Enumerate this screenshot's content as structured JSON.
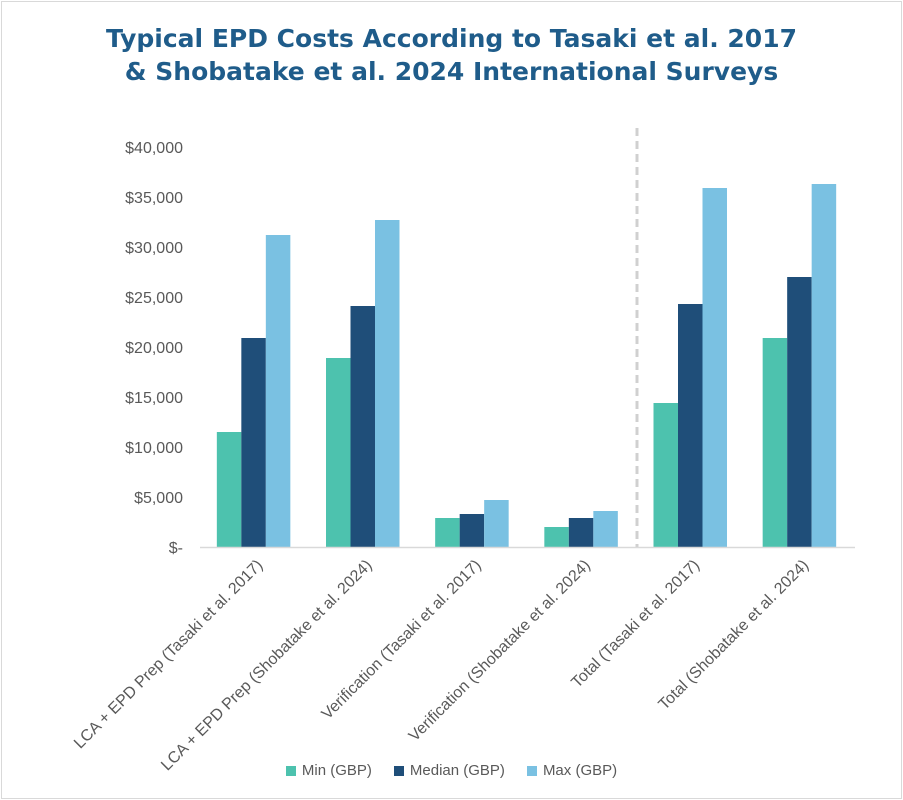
{
  "chart_data": {
    "type": "bar",
    "title": "Typical EPD Costs According to Tasaki et al. 2017 & Shobatake et al. 2024 International Surveys",
    "title_lines": [
      "Typical EPD Costs According to Tasaki et al. 2017",
      "& Shobatake et al. 2024 International Surveys"
    ],
    "xlabel": "",
    "ylabel": "",
    "ylim": [
      0,
      40000
    ],
    "yticks": [
      0,
      5000,
      10000,
      15000,
      20000,
      25000,
      30000,
      35000,
      40000
    ],
    "ytick_labels": [
      "$-",
      "$5,000",
      "$10,000",
      "$15,000",
      "$20,000",
      "$25,000",
      "$30,000",
      "$35,000",
      "$40,000"
    ],
    "grid": false,
    "legend_position": "bottom",
    "categories": [
      "LCA + EPD Prep (Tasaki et al. 2017)",
      "LCA + EPD Prep (Shobatake et al. 2024)",
      "Verification (Tasaki et al. 2017)",
      "Verification (Shobatake et al. 2024)",
      "Total (Tasaki et al. 2017)",
      "Total (Shobatake et al. 2024)"
    ],
    "series": [
      {
        "name": "Min (GBP)",
        "color": "#4dc2ae",
        "values": [
          11500,
          18900,
          2900,
          2000,
          14400,
          20900
        ]
      },
      {
        "name": "Median (GBP)",
        "color": "#1f4e79",
        "values": [
          20900,
          24100,
          3300,
          2900,
          24300,
          27000
        ]
      },
      {
        "name": "Max (GBP)",
        "color": "#7ac1e2",
        "values": [
          31200,
          32700,
          4700,
          3600,
          35900,
          36300
        ]
      }
    ],
    "annotations": [
      "dashed divider between Verification and Total groups"
    ]
  }
}
